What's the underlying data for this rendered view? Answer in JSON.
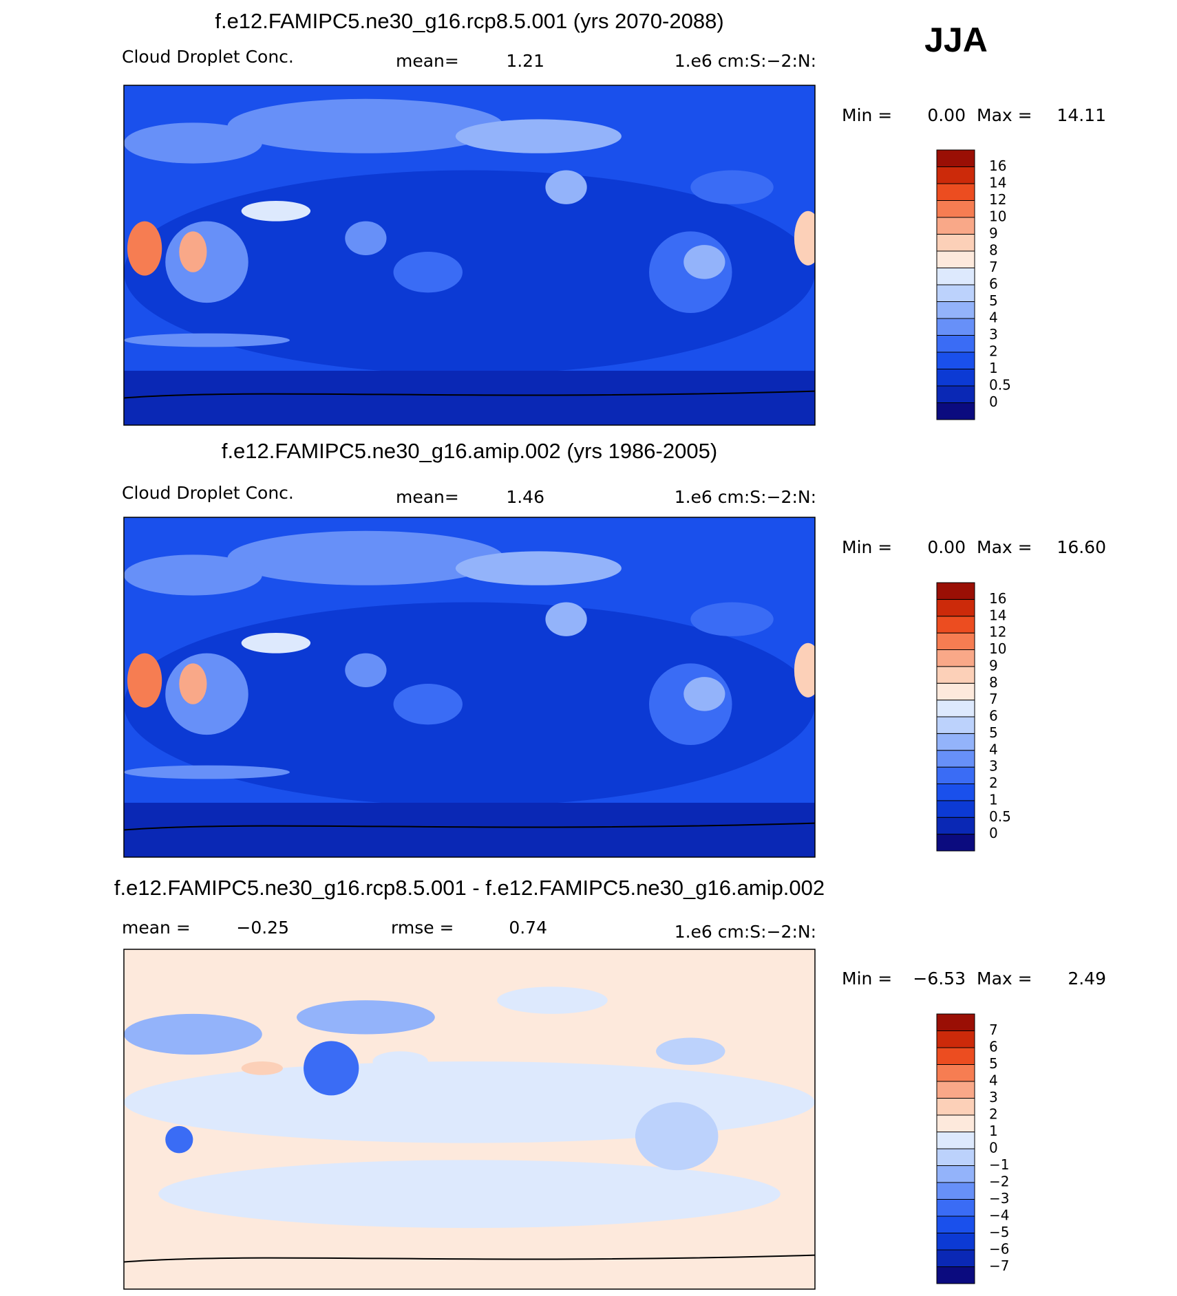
{
  "season": "JJA",
  "palette": [
    "#0b0b7f",
    "#0a28b5",
    "#0c3ad4",
    "#1a50ec",
    "#3a6cf5",
    "#6790f8",
    "#93b3fa",
    "#bcd2fc",
    "#dde9fd",
    "#fde9dc",
    "#fcd0b8",
    "#f9a888",
    "#f67d52",
    "#ec4d20",
    "#cc2a0a",
    "#9a0f05"
  ],
  "panels": [
    {
      "title": "f.e12.FAMIPC5.ne30_g16.rcp8.5.001 (yrs 2070-2088)",
      "variable": "Cloud Droplet Conc.",
      "mean_label": "mean=",
      "mean": "1.21",
      "units": "1.e6 cm:S:−2:N:",
      "min_label": "Min =",
      "min": "0.00",
      "max_label": "Max =",
      "max": "14.11",
      "colorbar_labels": [
        "0",
        "0.5",
        "1",
        "2",
        "3",
        "4",
        "5",
        "6",
        "7",
        "8",
        "9",
        "10",
        "12",
        "14",
        "16"
      ]
    },
    {
      "title": "f.e12.FAMIPC5.ne30_g16.amip.002 (yrs 1986-2005)",
      "variable": "Cloud Droplet Conc.",
      "mean_label": "mean=",
      "mean": "1.46",
      "units": "1.e6 cm:S:−2:N:",
      "min_label": "Min =",
      "min": "0.00",
      "max_label": "Max =",
      "max": "16.60",
      "colorbar_labels": [
        "0",
        "0.5",
        "1",
        "2",
        "3",
        "4",
        "5",
        "6",
        "7",
        "8",
        "9",
        "10",
        "12",
        "14",
        "16"
      ]
    },
    {
      "title": "f.e12.FAMIPC5.ne30_g16.rcp8.5.001 - f.e12.FAMIPC5.ne30_g16.amip.002",
      "mean_label": "mean =",
      "mean": "−0.25",
      "rmse_label": "rmse =",
      "rmse": "0.74",
      "units": "1.e6 cm:S:−2:N:",
      "min_label": "Min =",
      "min": "−6.53",
      "max_label": "Max =",
      "max": "2.49",
      "colorbar_labels": [
        "−7",
        "−6",
        "−5",
        "−4",
        "−3",
        "−2",
        "−1",
        "0",
        "1",
        "2",
        "3",
        "4",
        "5",
        "6",
        "7"
      ]
    }
  ]
}
